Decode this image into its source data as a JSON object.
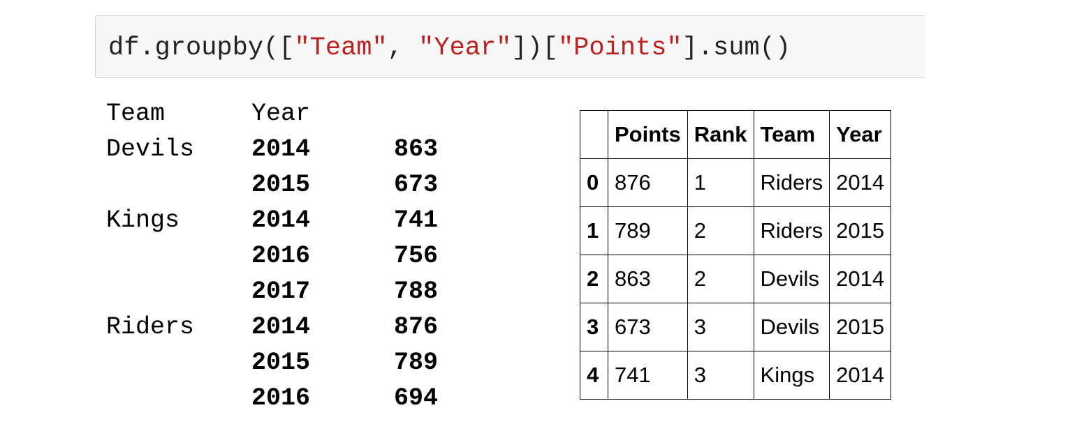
{
  "code_cell": {
    "tokens": [
      {
        "text": "df.groupby([",
        "kind": "plain"
      },
      {
        "text": "\"Team\"",
        "kind": "string"
      },
      {
        "text": ", ",
        "kind": "plain"
      },
      {
        "text": "\"Year\"",
        "kind": "string"
      },
      {
        "text": "])[",
        "kind": "plain"
      },
      {
        "text": "\"Points\"",
        "kind": "string"
      },
      {
        "text": "].sum()",
        "kind": "plain"
      }
    ],
    "string_color": "#ba2121"
  },
  "series_output": {
    "header": {
      "team": "Team",
      "year": "Year"
    },
    "rows": [
      {
        "team": "Devils",
        "year": "2014",
        "value": "863"
      },
      {
        "team": "",
        "year": "2015",
        "value": "673"
      },
      {
        "team": "Kings",
        "year": "2014",
        "value": "741"
      },
      {
        "team": "",
        "year": "2016",
        "value": "756"
      },
      {
        "team": "",
        "year": "2017",
        "value": "788"
      },
      {
        "team": "Riders",
        "year": "2014",
        "value": "876"
      },
      {
        "team": "",
        "year": "2015",
        "value": "789"
      },
      {
        "team": "",
        "year": "2016",
        "value": "694"
      }
    ]
  },
  "dataframe": {
    "columns": [
      "",
      "Points",
      "Rank",
      "Team",
      "Year"
    ],
    "rows": [
      {
        "index": "0",
        "cells": [
          "876",
          "1",
          "Riders",
          "2014"
        ]
      },
      {
        "index": "1",
        "cells": [
          "789",
          "2",
          "Riders",
          "2015"
        ]
      },
      {
        "index": "2",
        "cells": [
          "863",
          "2",
          "Devils",
          "2014"
        ]
      },
      {
        "index": "3",
        "cells": [
          "673",
          "3",
          "Devils",
          "2015"
        ]
      },
      {
        "index": "4",
        "cells": [
          "741",
          "3",
          "Kings",
          "2014"
        ]
      }
    ]
  }
}
